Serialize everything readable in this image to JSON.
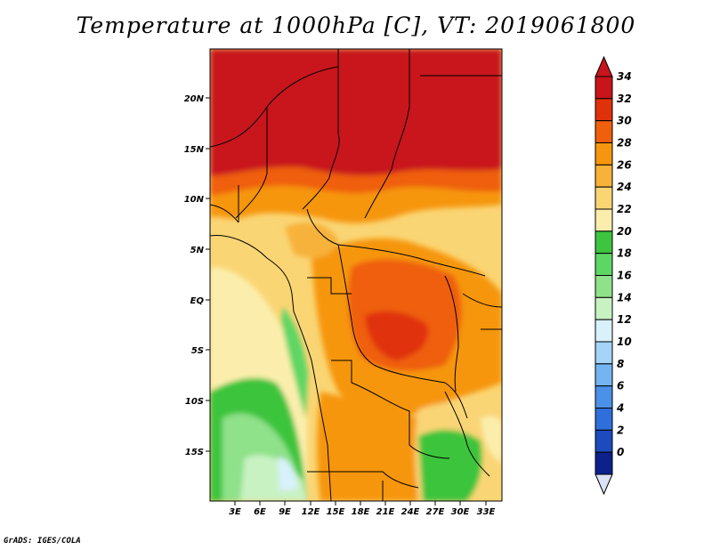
{
  "title": "Temperature at 1000hPa [C], VT: 2019061800",
  "footer": "GrADS: IGES/COLA",
  "map": {
    "lat_range": [
      -19,
      24.5
    ],
    "lon_range": [
      0,
      35.5
    ],
    "lat_ticks": [
      "20N",
      "15N",
      "10N",
      "5N",
      "EQ",
      "5S",
      "10S",
      "15S"
    ],
    "lon_ticks": [
      "3E",
      "6E",
      "9E",
      "12E",
      "15E",
      "18E",
      "21E",
      "24E",
      "27E",
      "30E",
      "33E"
    ]
  },
  "colorbar": {
    "labels": [
      "34",
      "32",
      "30",
      "28",
      "26",
      "24",
      "22",
      "20",
      "18",
      "16",
      "14",
      "12",
      "10",
      "8",
      "6",
      "4",
      "2",
      "0"
    ],
    "colors": [
      "#c8141a",
      "#e0320a",
      "#ef5f0c",
      "#f6960e",
      "#f7b23a",
      "#fad574",
      "#fbeeac",
      "#3ec43e",
      "#5ed664",
      "#8fe18a",
      "#c8f2c2",
      "#d8f1fb",
      "#a5d4f8",
      "#72b5f1",
      "#4a91e7",
      "#2f6fdb",
      "#1c4bbd",
      "#0e208c"
    ],
    "top_color": "#c8141a",
    "bottom_color": "#dbe2f5"
  }
}
